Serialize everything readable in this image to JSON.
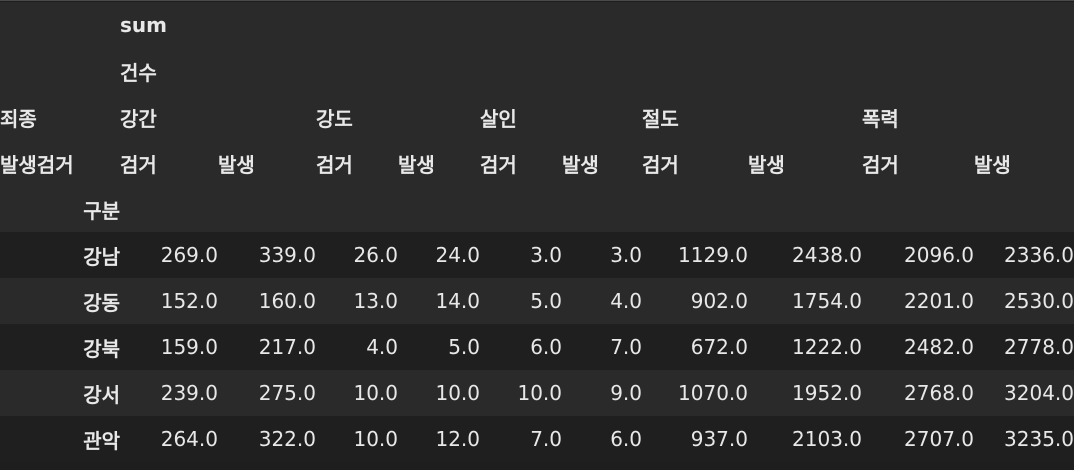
{
  "header": {
    "level0": "sum",
    "level1": "건수",
    "crime_label": "죄종",
    "crimes": [
      "강간",
      "강도",
      "살인",
      "절도",
      "폭력"
    ],
    "status_label": "발생검거",
    "statuses": [
      "검거",
      "발생",
      "검거",
      "발생",
      "검거",
      "발생",
      "검거",
      "발생",
      "검거",
      "발생"
    ],
    "index_name": "구분"
  },
  "rows": [
    {
      "name": "강남",
      "values": [
        "269.0",
        "339.0",
        "26.0",
        "24.0",
        "3.0",
        "3.0",
        "1129.0",
        "2438.0",
        "2096.0",
        "2336.0"
      ]
    },
    {
      "name": "강동",
      "values": [
        "152.0",
        "160.0",
        "13.0",
        "14.0",
        "5.0",
        "4.0",
        "902.0",
        "1754.0",
        "2201.0",
        "2530.0"
      ]
    },
    {
      "name": "강북",
      "values": [
        "159.0",
        "217.0",
        "4.0",
        "5.0",
        "6.0",
        "7.0",
        "672.0",
        "1222.0",
        "2482.0",
        "2778.0"
      ]
    },
    {
      "name": "강서",
      "values": [
        "239.0",
        "275.0",
        "10.0",
        "10.0",
        "10.0",
        "9.0",
        "1070.0",
        "1952.0",
        "2768.0",
        "3204.0"
      ]
    },
    {
      "name": "관악",
      "values": [
        "264.0",
        "322.0",
        "10.0",
        "12.0",
        "7.0",
        "6.0",
        "937.0",
        "2103.0",
        "2707.0",
        "3235.0"
      ]
    }
  ]
}
